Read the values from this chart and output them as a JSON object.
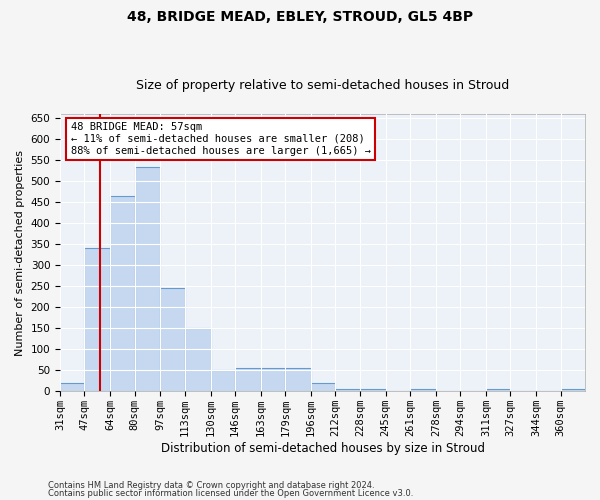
{
  "title1": "48, BRIDGE MEAD, EBLEY, STROUD, GL5 4BP",
  "title2": "Size of property relative to semi-detached houses in Stroud",
  "xlabel": "Distribution of semi-detached houses by size in Stroud",
  "ylabel": "Number of semi-detached properties",
  "footnote1": "Contains HM Land Registry data © Crown copyright and database right 2024.",
  "footnote2": "Contains public sector information licensed under the Open Government Licence v3.0.",
  "annotation_title": "48 BRIDGE MEAD: 57sqm",
  "annotation_line1": "← 11% of semi-detached houses are smaller (208)",
  "annotation_line2": "88% of semi-detached houses are larger (1,665) →",
  "property_size": 57,
  "bar_color": "#c5d8f0",
  "bar_edge_color": "#6699cc",
  "vline_color": "#cc0000",
  "annotation_box_color": "#ffffff",
  "annotation_box_edge": "#cc0000",
  "categories": [
    "31sqm",
    "47sqm",
    "64sqm",
    "80sqm",
    "97sqm",
    "113sqm",
    "130sqm",
    "146sqm",
    "163sqm",
    "179sqm",
    "196sqm",
    "212sqm",
    "228sqm",
    "245sqm",
    "261sqm",
    "278sqm",
    "294sqm",
    "311sqm",
    "327sqm",
    "344sqm",
    "360sqm"
  ],
  "bin_edges": [
    31,
    47,
    64,
    80,
    97,
    113,
    130,
    146,
    163,
    179,
    196,
    212,
    228,
    245,
    261,
    278,
    294,
    311,
    327,
    344,
    360,
    376
  ],
  "values": [
    20,
    340,
    465,
    535,
    245,
    150,
    50,
    55,
    55,
    55,
    20,
    5,
    5,
    0,
    5,
    0,
    0,
    5,
    0,
    0,
    5
  ],
  "ylim": [
    0,
    660
  ],
  "yticks": [
    0,
    50,
    100,
    150,
    200,
    250,
    300,
    350,
    400,
    450,
    500,
    550,
    600,
    650
  ],
  "background_color": "#edf2f9",
  "grid_color": "#ffffff",
  "fig_bgcolor": "#f5f5f5",
  "title1_fontsize": 10,
  "title2_fontsize": 9,
  "xlabel_fontsize": 8.5,
  "ylabel_fontsize": 8,
  "tick_fontsize": 7.5,
  "annotation_fontsize": 7.5
}
